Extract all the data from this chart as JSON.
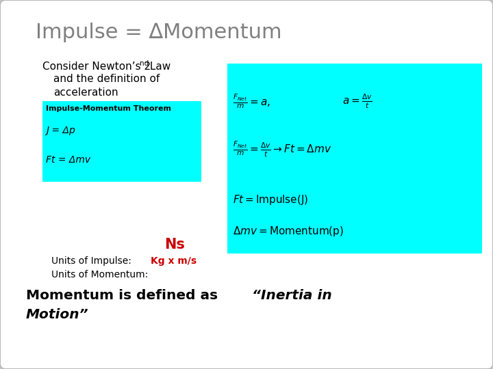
{
  "title": "Impulse = ∆Momentum",
  "title_color": "#808080",
  "cyan_color": "#00FFFF",
  "box1_title": "Impulse-Momentum Theorem",
  "box1_line1": "J = Δp",
  "box1_line2": "Ft = Δmv",
  "ns_text": "Ns",
  "ns_color": "#cc0000",
  "units_impulse": "Units of Impulse:",
  "units_impulse_val": "Kg x m/s",
  "units_impulse_val_color": "#cc0000",
  "units_momentum": "Units of Momentum:",
  "momentum_def1": "Momentum is defined as  “Inertia in",
  "momentum_def2": "Motion”"
}
